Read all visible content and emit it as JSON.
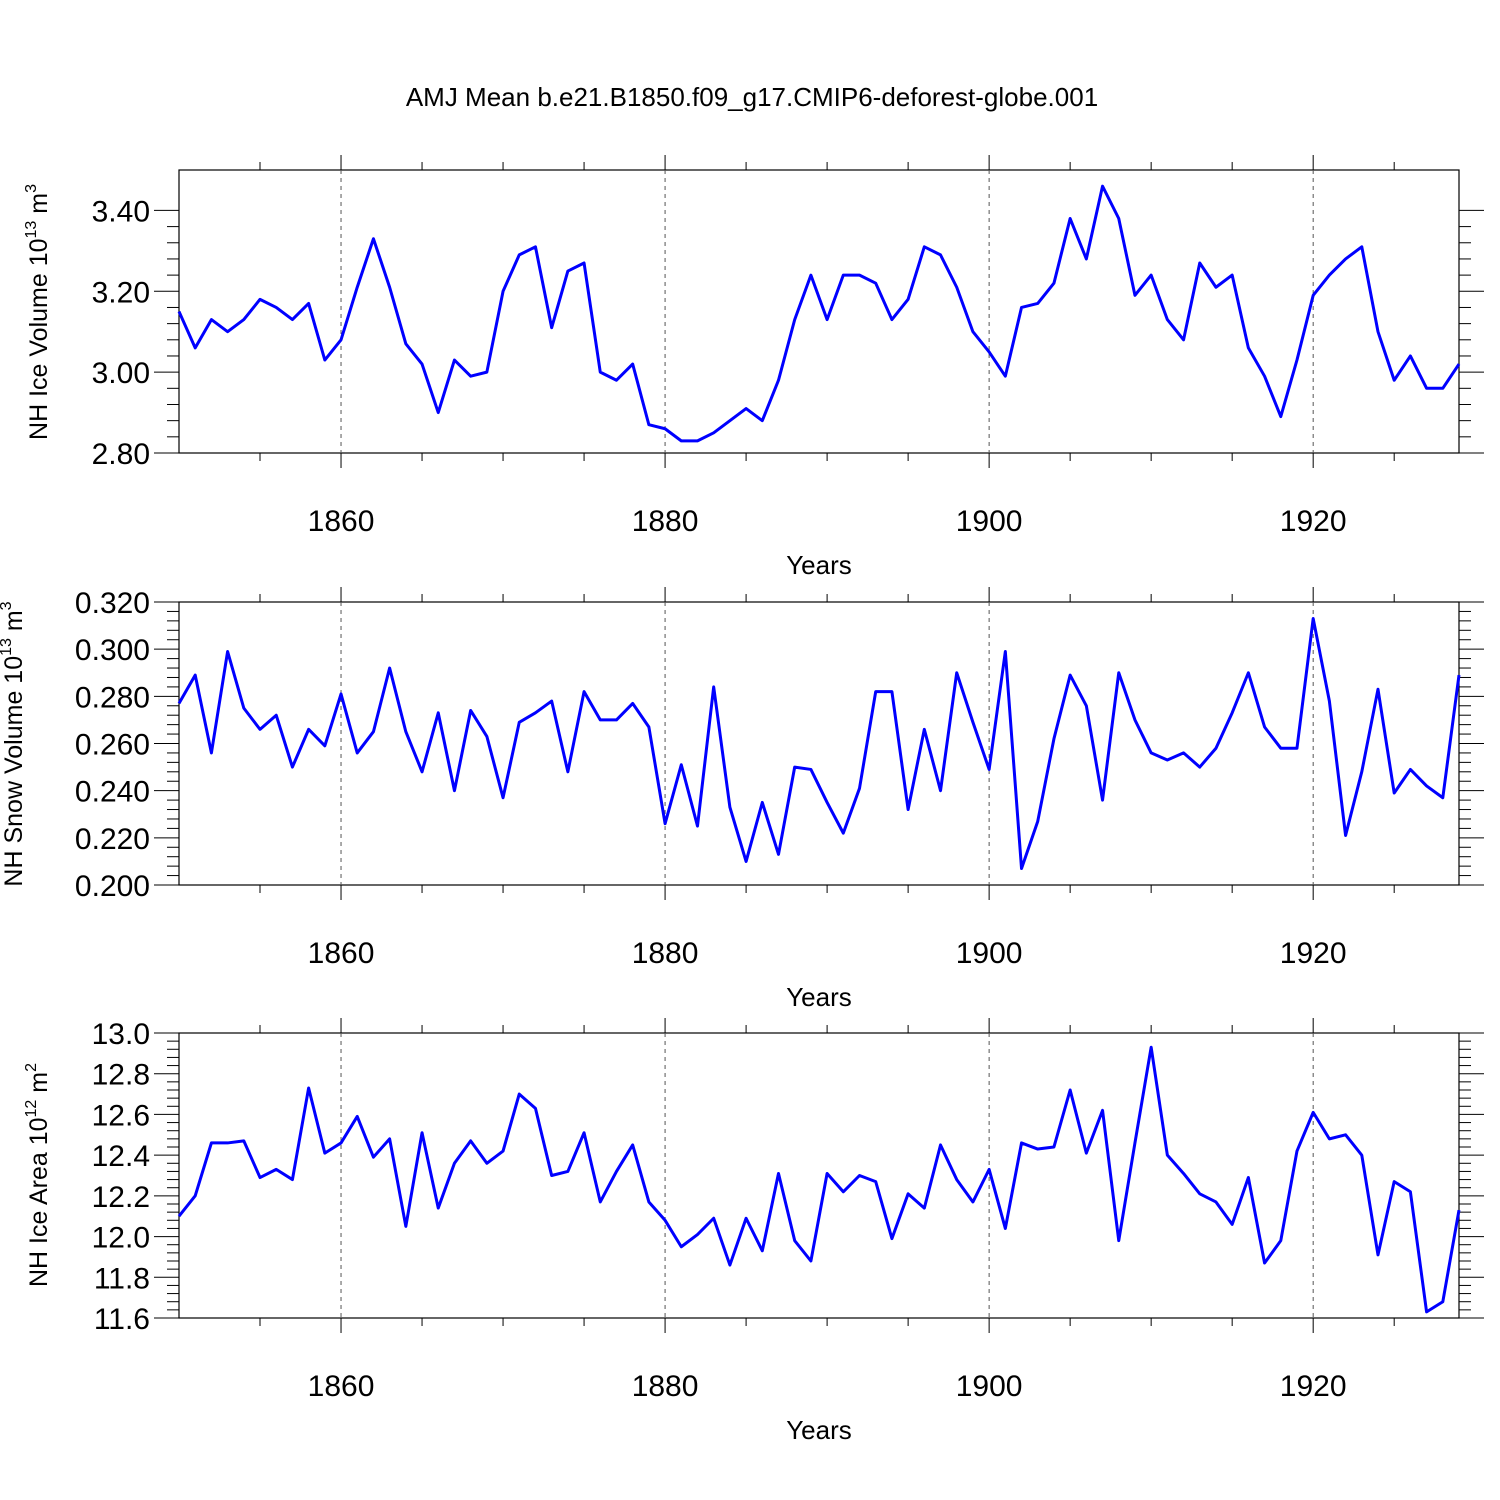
{
  "figure": {
    "title": "AMJ Mean b.e21.B1850.f09_g17.CMIP6-deforest-globe.001"
  },
  "chart_data": [
    {
      "type": "line",
      "title": "AMJ Mean b.e21.B1850.f09_g17.CMIP6-deforest-globe.001",
      "ylabel_main": "NH Ice Volume 10",
      "ylabel_exp": "13",
      "ylabel_unit": "m",
      "ylabel_unit_exp": "3",
      "xlabel": "Years",
      "xlim": [
        1850,
        1929
      ],
      "ylim": [
        2.8,
        3.5
      ],
      "x_ticks": [
        1860,
        1880,
        1900,
        1920
      ],
      "y_ticks": [
        "2.80",
        "3.00",
        "3.20",
        "3.40"
      ],
      "line_color": "#0000ff",
      "x_start": 1850,
      "values": [
        3.15,
        3.06,
        3.13,
        3.1,
        3.13,
        3.18,
        3.16,
        3.13,
        3.17,
        3.03,
        3.08,
        3.21,
        3.33,
        3.21,
        3.07,
        3.02,
        2.9,
        3.03,
        2.99,
        3.0,
        3.2,
        3.29,
        3.31,
        3.11,
        3.25,
        3.27,
        3.0,
        2.98,
        3.02,
        2.87,
        2.86,
        2.83,
        2.83,
        2.85,
        2.88,
        2.91,
        2.88,
        2.98,
        3.13,
        3.24,
        3.13,
        3.24,
        3.24,
        3.22,
        3.13,
        3.18,
        3.31,
        3.29,
        3.21,
        3.1,
        3.05,
        2.99,
        3.16,
        3.17,
        3.22,
        3.38,
        3.28,
        3.46,
        3.38,
        3.19,
        3.24,
        3.13,
        3.08,
        3.27,
        3.21,
        3.24,
        3.06,
        2.99,
        2.89,
        3.03,
        3.19,
        3.24,
        3.28,
        3.31,
        3.1,
        2.98,
        3.04,
        2.96,
        2.96,
        3.02
      ]
    },
    {
      "type": "line",
      "ylabel_main": "NH Snow Volume 10",
      "ylabel_exp": "13",
      "ylabel_unit": "m",
      "ylabel_unit_exp": "3",
      "xlabel": "Years",
      "xlim": [
        1850,
        1929
      ],
      "ylim": [
        0.2,
        0.32
      ],
      "x_ticks": [
        1860,
        1880,
        1900,
        1920
      ],
      "y_ticks": [
        "0.200",
        "0.220",
        "0.240",
        "0.260",
        "0.280",
        "0.300",
        "0.320"
      ],
      "line_color": "#0000ff",
      "x_start": 1850,
      "values": [
        0.277,
        0.289,
        0.256,
        0.299,
        0.275,
        0.266,
        0.272,
        0.25,
        0.266,
        0.259,
        0.281,
        0.256,
        0.265,
        0.292,
        0.265,
        0.248,
        0.273,
        0.24,
        0.274,
        0.263,
        0.237,
        0.269,
        0.273,
        0.278,
        0.248,
        0.282,
        0.27,
        0.27,
        0.277,
        0.267,
        0.226,
        0.251,
        0.225,
        0.284,
        0.233,
        0.21,
        0.235,
        0.213,
        0.25,
        0.249,
        0.235,
        0.222,
        0.241,
        0.282,
        0.282,
        0.232,
        0.266,
        0.24,
        0.29,
        0.269,
        0.249,
        0.299,
        0.207,
        0.227,
        0.262,
        0.289,
        0.276,
        0.236,
        0.29,
        0.27,
        0.256,
        0.253,
        0.256,
        0.25,
        0.258,
        0.273,
        0.29,
        0.267,
        0.258,
        0.258,
        0.313,
        0.278,
        0.221,
        0.248,
        0.283,
        0.239,
        0.249,
        0.242,
        0.237,
        0.289
      ]
    },
    {
      "type": "line",
      "ylabel_main": "NH Ice Area 10",
      "ylabel_exp": "12",
      "ylabel_unit": "m",
      "ylabel_unit_exp": "2",
      "xlabel": "Years",
      "xlim": [
        1850,
        1929
      ],
      "ylim": [
        11.6,
        13.0
      ],
      "x_ticks": [
        1860,
        1880,
        1900,
        1920
      ],
      "y_ticks": [
        "11.6",
        "11.8",
        "12.0",
        "12.2",
        "12.4",
        "12.6",
        "12.8",
        "13.0"
      ],
      "line_color": "#0000ff",
      "x_start": 1850,
      "values": [
        12.1,
        12.2,
        12.46,
        12.46,
        12.47,
        12.29,
        12.33,
        12.28,
        12.73,
        12.41,
        12.46,
        12.59,
        12.39,
        12.48,
        12.05,
        12.51,
        12.14,
        12.36,
        12.47,
        12.36,
        12.42,
        12.7,
        12.63,
        12.3,
        12.32,
        12.51,
        12.17,
        12.32,
        12.45,
        12.17,
        12.08,
        11.95,
        12.01,
        12.09,
        11.86,
        12.09,
        11.93,
        12.31,
        11.98,
        11.88,
        12.31,
        12.22,
        12.3,
        12.27,
        11.99,
        12.21,
        12.14,
        12.45,
        12.28,
        12.17,
        12.33,
        12.04,
        12.46,
        12.43,
        12.44,
        12.72,
        12.41,
        12.62,
        11.98,
        12.46,
        12.93,
        12.4,
        12.31,
        12.21,
        12.17,
        12.06,
        12.29,
        11.87,
        11.98,
        12.42,
        12.61,
        12.48,
        12.5,
        12.4,
        11.91,
        12.27,
        12.22,
        11.63,
        11.68,
        12.13
      ]
    }
  ]
}
